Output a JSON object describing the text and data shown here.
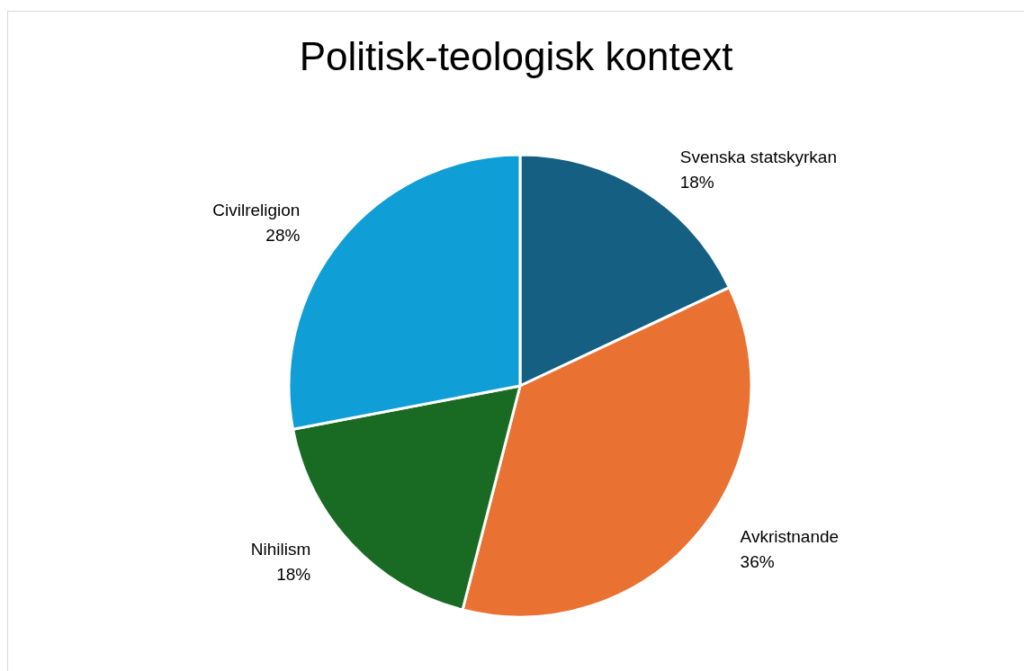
{
  "chart_data": {
    "type": "pie",
    "title": "Politisk-teologisk kontext",
    "categories": [
      "Svenska statskyrkan",
      "Avkristnande",
      "Nihilism",
      "Civilreligion"
    ],
    "values": [
      18,
      36,
      18,
      28
    ],
    "colors": [
      "#156082",
      "#e97132",
      "#196b24",
      "#0f9ed5"
    ],
    "value_labels": [
      "18%",
      "36%",
      "18%",
      "28%"
    ],
    "legend": false
  }
}
